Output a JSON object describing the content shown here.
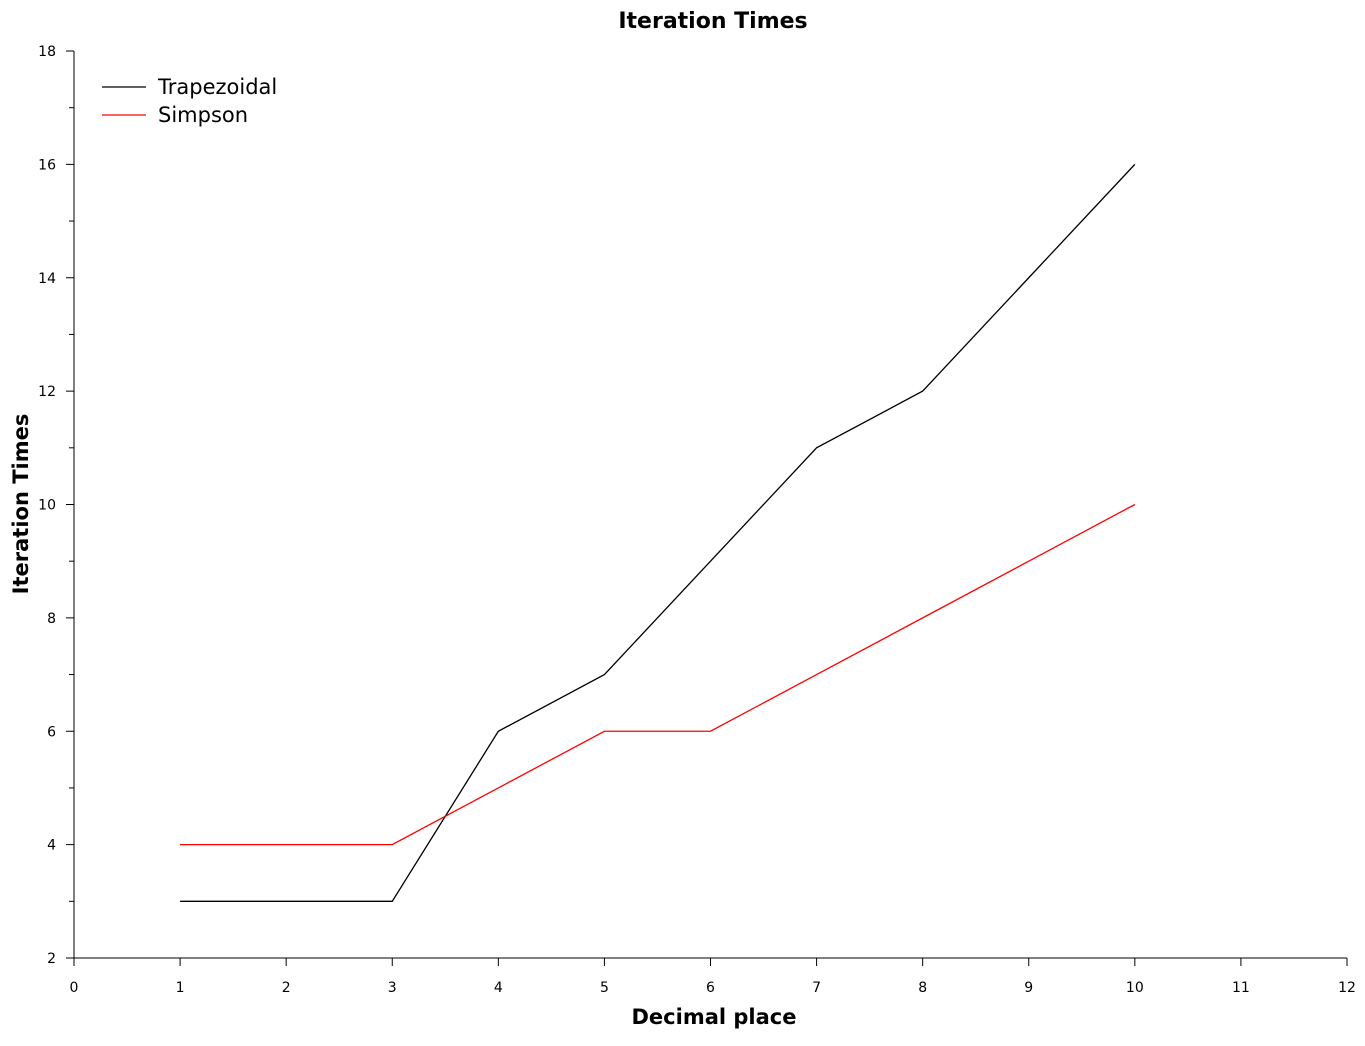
{
  "chart_data": {
    "type": "line",
    "title": "Iteration Times",
    "xlabel": "Decimal place",
    "ylabel": "Iteration Times",
    "xlim": [
      0,
      12
    ],
    "ylim": [
      2,
      18
    ],
    "x_ticks": [
      0,
      1,
      2,
      3,
      4,
      5,
      6,
      7,
      8,
      9,
      10,
      11,
      12
    ],
    "y_ticks": [
      2,
      4,
      6,
      8,
      10,
      12,
      14,
      16,
      18
    ],
    "y_minor_ticks": [
      3,
      5,
      7,
      9,
      11,
      13,
      15,
      17
    ],
    "grid": false,
    "legend_position": "top-left",
    "x": [
      1,
      2,
      3,
      4,
      5,
      6,
      7,
      8,
      9,
      10
    ],
    "series": [
      {
        "name": "Trapezoidal",
        "color": "#000000",
        "values": [
          3,
          3,
          3,
          6,
          7,
          9,
          11,
          12,
          14,
          16
        ]
      },
      {
        "name": "Simpson",
        "color": "#ff0000",
        "values": [
          4,
          4,
          4,
          5,
          6,
          6,
          7,
          8,
          9,
          10
        ]
      }
    ]
  }
}
